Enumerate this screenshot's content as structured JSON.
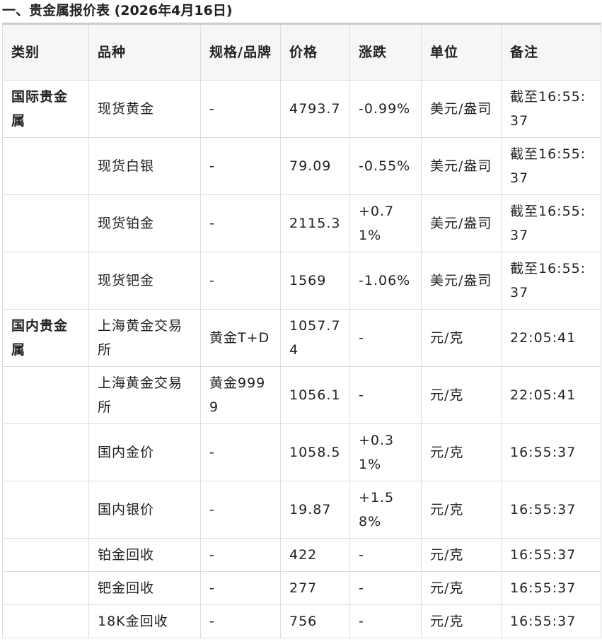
{
  "title": "一、贵金属报价表 (2026年4月16日)",
  "headers": [
    "类别",
    "品种",
    "规格/品牌",
    "价格",
    "涨跌",
    "单位",
    "备注"
  ],
  "rows": [
    [
      "国际贵金属",
      "现货黄金",
      "-",
      "4793.7",
      "-0.99%",
      "美元/盎司",
      "截至16:55:37"
    ],
    [
      "",
      "现货白银",
      "-",
      "79.09",
      "-0.55%",
      "美元/盎司",
      "截至16:55:37"
    ],
    [
      "",
      "现货铂金",
      "-",
      "2115.3",
      "+0.71%",
      "美元/盎司",
      "截至16:55:37"
    ],
    [
      "",
      "现货钯金",
      "-",
      "1569",
      "-1.06%",
      "美元/盎司",
      "截至16:55:37"
    ],
    [
      "国内贵金属",
      "上海黄金交易所",
      "黄金T+D",
      "1057.74",
      "-",
      "元/克",
      "22:05:41"
    ],
    [
      "",
      "上海黄金交易所",
      "黄金9999",
      "1056.1",
      "-",
      "元/克",
      "22:05:41"
    ],
    [
      "",
      "国内金价",
      "-",
      "1058.5",
      "+0.31%",
      "元/克",
      "16:55:37"
    ],
    [
      "",
      "国内银价",
      "-",
      "19.87",
      "+1.58%",
      "元/克",
      "16:55:37"
    ],
    [
      "",
      "铂金回收",
      "-",
      "422",
      "-",
      "元/克",
      "16:55:37"
    ],
    [
      "",
      "钯金回收",
      "-",
      "277",
      "-",
      "元/克",
      "16:55:37"
    ],
    [
      "",
      "18K金回收",
      "-",
      "756",
      "-",
      "元/克",
      "16:55:37"
    ]
  ]
}
